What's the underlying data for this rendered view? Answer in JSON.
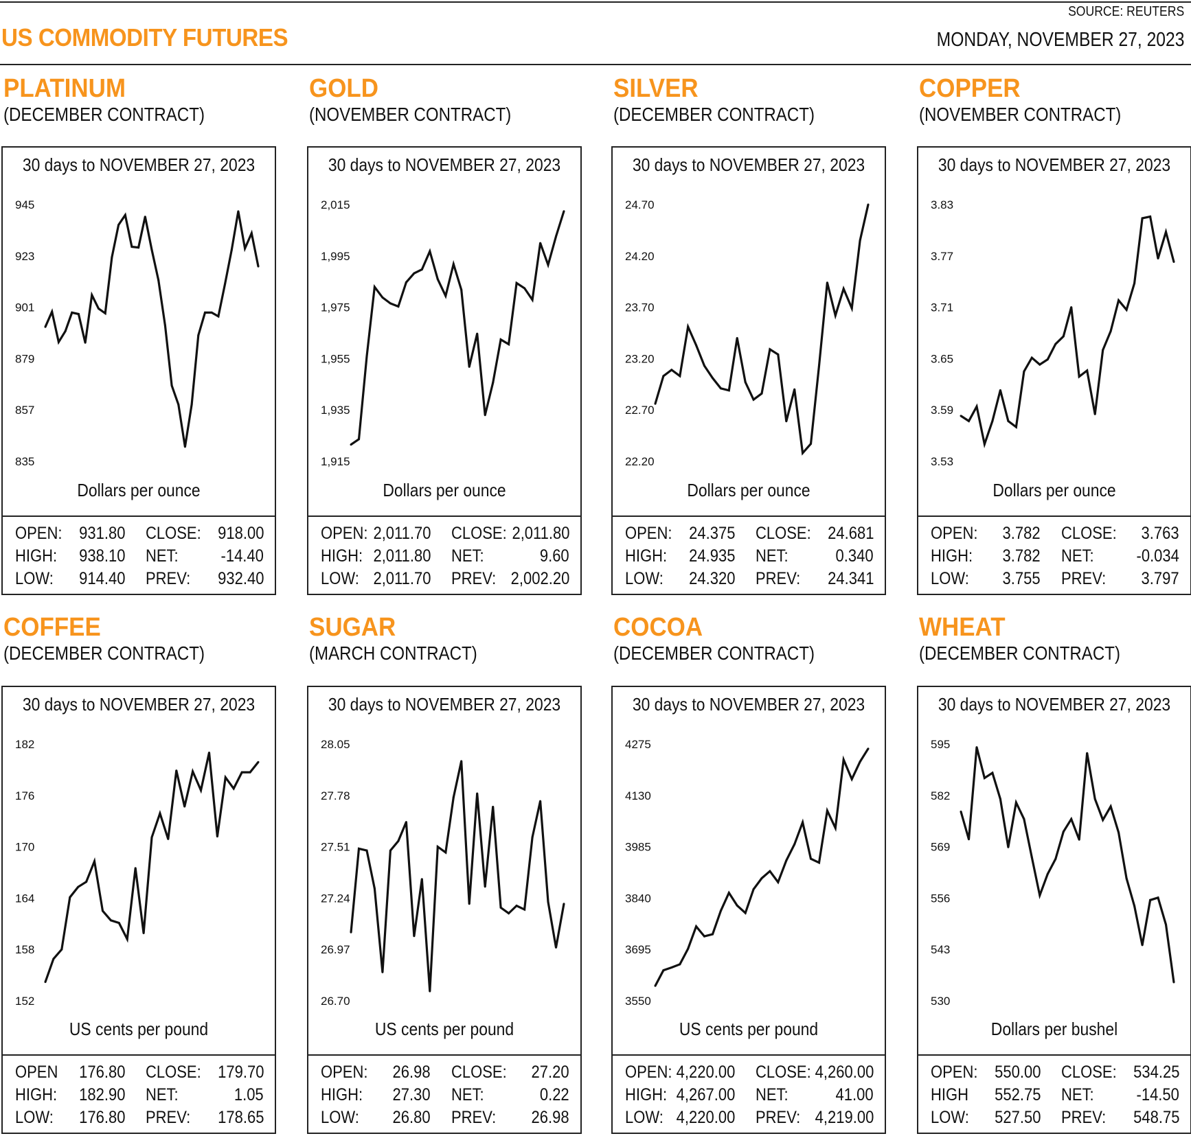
{
  "header": {
    "title": "US COMMODITY FUTURES",
    "source": "SOURCE: REUTERS",
    "date": "MONDAY, NOVEMBER 27, 2023",
    "accent_color": "#f7941d"
  },
  "chart_data": [
    {
      "type": "line",
      "name": "PLATINUM",
      "contract": "(DECEMBER CONTRACT)",
      "period": "30 days to NOVEMBER 27, 2023",
      "ylabel": "Dollars per ounce",
      "y_ticks": [
        "945",
        "923",
        "901",
        "879",
        "857",
        "835"
      ],
      "ylim": [
        835,
        945
      ],
      "values": [
        892.6,
        899.1,
        886.1,
        890.7,
        898.7,
        898.1,
        885.8,
        906.2,
        900.4,
        898.4,
        922.4,
        936.3,
        940.5,
        926.9,
        926.6,
        939.8,
        925.6,
        912.6,
        893.2,
        867.4,
        859.3,
        841.2,
        859.3,
        889.0,
        898.7,
        898.7,
        897.1,
        911.0,
        925.6,
        942.1,
        926.2,
        932.7,
        918.5
      ],
      "stats": {
        "open_label": "OPEN:",
        "open": "931.80",
        "high_label": "HIGH:",
        "high": "938.10",
        "low_label": "LOW:",
        "low": "914.40",
        "close_label": "CLOSE:",
        "close": "918.00",
        "net_label": "NET:",
        "net": "-14.40",
        "prev_label": "PREV:",
        "prev": "932.40"
      }
    },
    {
      "type": "line",
      "name": "GOLD",
      "contract": "(NOVEMBER CONTRACT)",
      "period": "30 days to NOVEMBER 27, 2023",
      "ylabel": "Dollars per ounce",
      "y_ticks": [
        "2,015",
        "1,995",
        "1,975",
        "1,955",
        "1,935",
        "1,915"
      ],
      "ylim": [
        1915,
        2015
      ],
      "values": [
        1921.5,
        1923.6,
        1955.9,
        1982.9,
        1978.8,
        1976.5,
        1975.3,
        1984.7,
        1988.2,
        1989.7,
        1996.8,
        1985.9,
        1979.4,
        1991.8,
        1981.8,
        1951.8,
        1964.7,
        1933.0,
        1945.6,
        1962.4,
        1960.6,
        1984.4,
        1982.4,
        1977.9,
        2000.0,
        1991.5,
        2002.6,
        2012.4
      ],
      "stats": {
        "open_label": "OPEN:",
        "open": "2,011.70",
        "high_label": "HIGH:",
        "high": "2,011.80",
        "low_label": "LOW:",
        "low": "2,011.70",
        "close_label": "CLOSE:",
        "close": "2,011.80",
        "net_label": "NET:",
        "net": "9.60",
        "prev_label": "PREV:",
        "prev": "2,002.20"
      }
    },
    {
      "type": "line",
      "name": "SILVER",
      "contract": "(DECEMBER CONTRACT)",
      "period": "30 days to NOVEMBER 27, 2023",
      "ylabel": "Dollars per ounce",
      "y_ticks": [
        "24.70",
        "24.20",
        "23.70",
        "23.20",
        "22.70",
        "22.20"
      ],
      "ylim": [
        22.2,
        24.7
      ],
      "values": [
        22.76,
        23.03,
        23.09,
        23.03,
        23.51,
        23.33,
        23.13,
        23.01,
        22.91,
        22.89,
        23.4,
        22.97,
        22.8,
        22.86,
        23.29,
        23.24,
        22.59,
        22.9,
        22.28,
        22.37,
        23.13,
        23.94,
        23.62,
        23.88,
        23.69,
        24.35,
        24.7
      ],
      "stats": {
        "open_label": "OPEN:",
        "open": "24.375",
        "high_label": "HIGH:",
        "high": "24.935",
        "low_label": "LOW:",
        "low": "24.320",
        "close_label": "CLOSE:",
        "close": "24.681",
        "net_label": "NET:",
        "net": "0.340",
        "prev_label": "PREV:",
        "prev": "24.341"
      }
    },
    {
      "type": "line",
      "name": "COPPER",
      "contract": "(NOVEMBER CONTRACT)",
      "period": "30 days to NOVEMBER 27, 2023",
      "ylabel": "Dollars per ounce",
      "y_ticks": [
        "3.83",
        "3.77",
        "3.71",
        "3.65",
        "3.59",
        "3.53"
      ],
      "ylim": [
        3.53,
        3.83
      ],
      "values": [
        3.583,
        3.577,
        3.594,
        3.55,
        3.577,
        3.613,
        3.577,
        3.57,
        3.635,
        3.651,
        3.643,
        3.649,
        3.667,
        3.676,
        3.71,
        3.629,
        3.636,
        3.585,
        3.66,
        3.682,
        3.718,
        3.707,
        3.738,
        3.814,
        3.816,
        3.767,
        3.798,
        3.763
      ],
      "stats": {
        "open_label": "OPEN:",
        "open": "3.782",
        "high_label": "HIGH:",
        "high": "3.782",
        "low_label": "LOW:",
        "low": "3.755",
        "close_label": "CLOSE:",
        "close": "3.763",
        "net_label": "NET:",
        "net": "-0.034",
        "prev_label": "PREV:",
        "prev": "3.797"
      }
    },
    {
      "type": "line",
      "name": "COFFEE",
      "contract": "(DECEMBER CONTRACT)",
      "period": "30 days to NOVEMBER 27, 2023",
      "ylabel": "US cents per pound",
      "y_ticks": [
        "182",
        "176",
        "170",
        "164",
        "158",
        "152"
      ],
      "ylim": [
        152,
        182
      ],
      "values": [
        154.2,
        156.9,
        158.0,
        164.1,
        165.3,
        165.9,
        168.3,
        162.5,
        161.4,
        161.1,
        159.2,
        167.5,
        159.9,
        171.1,
        173.9,
        170.9,
        178.9,
        174.7,
        178.8,
        176.6,
        181.0,
        171.2,
        178.1,
        176.8,
        178.7,
        178.7,
        179.9
      ],
      "stats": {
        "open_label": "OPEN",
        "open": "176.80",
        "high_label": "HIGH:",
        "high": "182.90",
        "low_label": "LOW:",
        "low": "176.80",
        "close_label": "CLOSE:",
        "close": "179.70",
        "net_label": "NET:",
        "net": "1.05",
        "prev_label": "PREV:",
        "prev": "178.65"
      }
    },
    {
      "type": "line",
      "name": "SUGAR",
      "contract": "(MARCH CONTRACT)",
      "period": "30 days to NOVEMBER 27, 2023",
      "ylabel": "US cents per pound",
      "y_ticks": [
        "28.05",
        "27.78",
        "27.51",
        "27.24",
        "26.97",
        "26.70"
      ],
      "ylim": [
        26.7,
        28.05
      ],
      "values": [
        27.06,
        27.5,
        27.49,
        27.29,
        26.85,
        27.49,
        27.54,
        27.64,
        27.04,
        27.34,
        26.75,
        27.51,
        27.48,
        27.77,
        27.96,
        27.21,
        27.79,
        27.3,
        27.72,
        27.19,
        27.16,
        27.2,
        27.18,
        27.56,
        27.75,
        27.22,
        26.98,
        27.21
      ],
      "stats": {
        "open_label": "OPEN:",
        "open": "26.98",
        "high_label": "HIGH:",
        "high": "27.30",
        "low_label": "LOW:",
        "low": "26.80",
        "close_label": "CLOSE:",
        "close": "27.20",
        "net_label": "NET:",
        "net": "0.22",
        "prev_label": "PREV:",
        "prev": "26.98"
      }
    },
    {
      "type": "line",
      "name": "COCOA",
      "contract": "(DECEMBER CONTRACT)",
      "period": "30 days to NOVEMBER 27, 2023",
      "ylabel": "US cents per pound",
      "y_ticks": [
        "4275",
        "4130",
        "3985",
        "3840",
        "3695",
        "3550"
      ],
      "ylim": [
        3550,
        4275
      ],
      "values": [
        3592,
        3636,
        3644,
        3653,
        3697,
        3760,
        3732,
        3738,
        3804,
        3855,
        3819,
        3798,
        3865,
        3896,
        3916,
        3885,
        3946,
        3992,
        4054,
        3951,
        3940,
        4087,
        4038,
        4231,
        4176,
        4225,
        4262
      ],
      "stats": {
        "open_label": "OPEN:",
        "open": "4,220.00",
        "high_label": "HIGH:",
        "high": "4,267.00",
        "low_label": "LOW:",
        "low": "4,220.00",
        "close_label": "CLOSE:",
        "close": "4,260.00",
        "net_label": "NET:",
        "net": "41.00",
        "prev_label": "PREV:",
        "prev": "4,219.00"
      }
    },
    {
      "type": "line",
      "name": "WHEAT",
      "contract": "(DECEMBER CONTRACT)",
      "period": "30 days to NOVEMBER 27, 2023",
      "ylabel": "Dollars per bushel",
      "y_ticks": [
        "595",
        "582",
        "569",
        "556",
        "543",
        "530"
      ],
      "ylim": [
        530,
        595
      ],
      "values": [
        577.9,
        570.9,
        594.2,
        586.4,
        587.7,
        581.1,
        568.9,
        580.2,
        576.0,
        566.3,
        556.7,
        562.1,
        565.9,
        572.8,
        576.0,
        570.8,
        592.7,
        581.1,
        575.8,
        579.2,
        572.6,
        561.0,
        554.0,
        544.1,
        555.5,
        556.1,
        549.3,
        534.7
      ],
      "stats": {
        "open_label": "OPEN:",
        "open": "550.00",
        "high_label": "HIGH",
        "high": "552.75",
        "low_label": "LOW:",
        "low": "527.50",
        "close_label": "CLOSE:",
        "close": "534.25",
        "net_label": "NET:",
        "net": "-14.50",
        "prev_label": "PREV:",
        "prev": "548.75"
      }
    }
  ]
}
